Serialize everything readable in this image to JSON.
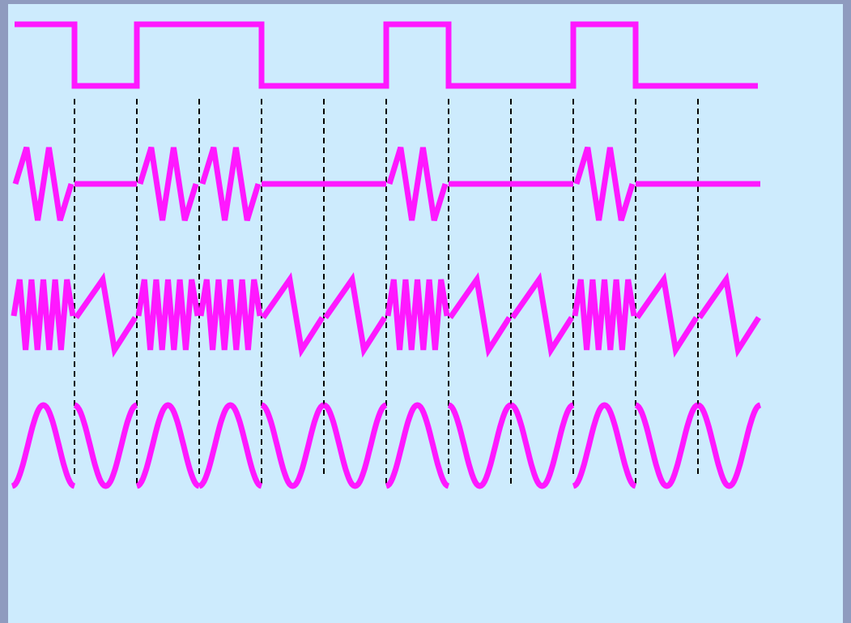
{
  "diagram": {
    "kind": "digital-modulation-waveforms",
    "colors": {
      "background": "#cdebfd",
      "frame": "#8f9bbf",
      "waveform": "#ff18ff",
      "guides": "#000000"
    },
    "bits": [
      1,
      0,
      1,
      1,
      0,
      0,
      1,
      0,
      0,
      1,
      0,
      0
    ],
    "rows": [
      {
        "id": "digital-signal",
        "kind": "square"
      },
      {
        "id": "ask-signal",
        "kind": "amplitude-shift"
      },
      {
        "id": "fsk-signal",
        "kind": "frequency-shift"
      },
      {
        "id": "psk-signal",
        "kind": "phase-shift"
      }
    ],
    "guide_style": "dashed"
  }
}
